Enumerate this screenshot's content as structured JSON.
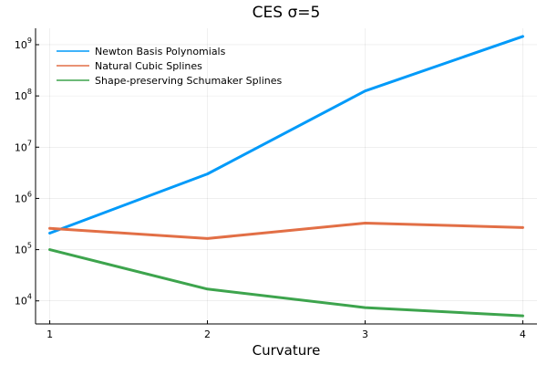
{
  "chart_data": {
    "type": "line",
    "title": "CES σ=5",
    "xlabel": "Curvature",
    "ylabel": "",
    "xscale": "linear",
    "yscale": "log10",
    "x": [
      1,
      2,
      3,
      4
    ],
    "xlim": [
      0.91,
      4.09
    ],
    "ylim_log10": [
      3.55,
      9.32
    ],
    "xticks": [
      {
        "value": 1,
        "label": "1"
      },
      {
        "value": 2,
        "label": "2"
      },
      {
        "value": 3,
        "label": "3"
      },
      {
        "value": 4,
        "label": "4"
      }
    ],
    "yticks": [
      {
        "exp": 4,
        "base": "10",
        "sup": "4"
      },
      {
        "exp": 5,
        "base": "10",
        "sup": "5"
      },
      {
        "exp": 6,
        "base": "10",
        "sup": "6"
      },
      {
        "exp": 7,
        "base": "10",
        "sup": "7"
      },
      {
        "exp": 8,
        "base": "10",
        "sup": "8"
      },
      {
        "exp": 9,
        "base": "10",
        "sup": "9"
      }
    ],
    "grid": true,
    "legend_position": "top-left",
    "series": [
      {
        "name": "Newton Basis Polynomials",
        "color": "#009af9",
        "values": [
          210000,
          3000000,
          125000000,
          1450000000
        ]
      },
      {
        "name": "Natural Cubic Splines",
        "color": "#e26f46",
        "values": [
          260000,
          165000,
          330000,
          270000
        ]
      },
      {
        "name": "Shape-preserving Schumaker Splines",
        "color": "#3da44d",
        "values": [
          100000,
          17000,
          7400,
          5100
        ]
      }
    ]
  }
}
